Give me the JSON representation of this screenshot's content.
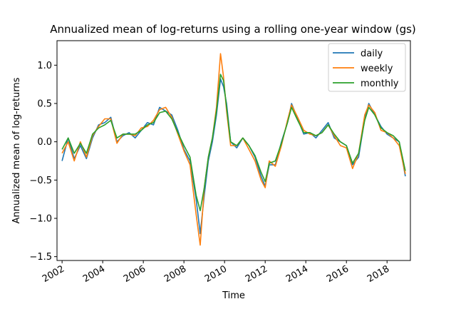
{
  "chart_data": {
    "type": "line",
    "title": "Annualized mean of log-returns using a rolling one-year window (gs)",
    "xlabel": "Time",
    "ylabel": "Annualized mean of log-returns",
    "x_ticks": [
      "2002",
      "2004",
      "2006",
      "2008",
      "2010",
      "2012",
      "2014",
      "2016",
      "2018"
    ],
    "y_ticks": [
      "−1.5",
      "−1.0",
      "−0.5",
      "0.0",
      "0.5",
      "1.0"
    ],
    "xlim": [
      2001.75,
      2019.15
    ],
    "ylim": [
      -1.55,
      1.32
    ],
    "grid": false,
    "legend_position": "top-right",
    "x": [
      2002.0,
      2002.3,
      2002.6,
      2002.9,
      2003.2,
      2003.5,
      2003.8,
      2004.1,
      2004.4,
      2004.7,
      2005.0,
      2005.3,
      2005.6,
      2005.9,
      2006.2,
      2006.5,
      2006.8,
      2007.1,
      2007.4,
      2007.7,
      2008.0,
      2008.3,
      2008.6,
      2008.8,
      2009.0,
      2009.2,
      2009.4,
      2009.6,
      2009.8,
      2009.95,
      2010.1,
      2010.3,
      2010.6,
      2010.9,
      2011.2,
      2011.5,
      2011.8,
      2012.0,
      2012.2,
      2012.5,
      2012.8,
      2013.1,
      2013.3,
      2013.6,
      2013.9,
      2014.2,
      2014.5,
      2014.8,
      2015.1,
      2015.4,
      2015.7,
      2016.0,
      2016.3,
      2016.6,
      2016.9,
      2017.1,
      2017.4,
      2017.7,
      2018.0,
      2018.3,
      2018.6,
      2018.9
    ],
    "series": [
      {
        "name": "daily",
        "color": "#1f77b4",
        "values": [
          -0.25,
          0.05,
          -0.22,
          -0.05,
          -0.22,
          0.05,
          0.22,
          0.25,
          0.32,
          0.0,
          0.08,
          0.12,
          0.05,
          0.15,
          0.25,
          0.22,
          0.45,
          0.4,
          0.35,
          0.15,
          -0.1,
          -0.25,
          -0.75,
          -1.2,
          -0.7,
          -0.25,
          0.0,
          0.35,
          0.82,
          0.72,
          0.5,
          0.0,
          -0.08,
          0.05,
          -0.05,
          -0.2,
          -0.45,
          -0.58,
          -0.3,
          -0.3,
          0.0,
          0.25,
          0.5,
          0.3,
          0.1,
          0.12,
          0.05,
          0.15,
          0.25,
          0.05,
          0.0,
          -0.05,
          -0.3,
          -0.2,
          0.3,
          0.5,
          0.35,
          0.2,
          0.1,
          0.05,
          0.0,
          -0.45
        ]
      },
      {
        "name": "weekly",
        "color": "#ff7f0e",
        "values": [
          -0.15,
          0.0,
          -0.25,
          0.0,
          -0.2,
          0.08,
          0.2,
          0.3,
          0.3,
          -0.02,
          0.1,
          0.1,
          0.08,
          0.18,
          0.2,
          0.28,
          0.42,
          0.45,
          0.32,
          0.1,
          -0.12,
          -0.3,
          -0.95,
          -1.35,
          -0.6,
          -0.2,
          0.05,
          0.45,
          1.15,
          0.85,
          0.4,
          -0.05,
          -0.05,
          0.05,
          -0.1,
          -0.25,
          -0.5,
          -0.6,
          -0.25,
          -0.32,
          -0.05,
          0.28,
          0.48,
          0.32,
          0.15,
          0.1,
          0.08,
          0.12,
          0.22,
          0.08,
          -0.05,
          -0.08,
          -0.35,
          -0.15,
          0.35,
          0.48,
          0.38,
          0.15,
          0.12,
          0.05,
          -0.05,
          -0.42
        ]
      },
      {
        "name": "monthly",
        "color": "#2ca02c",
        "values": [
          -0.1,
          0.05,
          -0.15,
          -0.02,
          -0.15,
          0.1,
          0.18,
          0.22,
          0.28,
          0.05,
          0.1,
          0.1,
          0.1,
          0.15,
          0.22,
          0.25,
          0.38,
          0.4,
          0.3,
          0.12,
          -0.05,
          -0.2,
          -0.7,
          -0.9,
          -0.6,
          -0.2,
          0.05,
          0.4,
          0.88,
          0.8,
          0.45,
          0.0,
          -0.05,
          0.05,
          -0.05,
          -0.18,
          -0.4,
          -0.52,
          -0.28,
          -0.25,
          -0.02,
          0.25,
          0.45,
          0.28,
          0.12,
          0.12,
          0.08,
          0.12,
          0.22,
          0.1,
          0.0,
          -0.05,
          -0.28,
          -0.15,
          0.28,
          0.45,
          0.35,
          0.18,
          0.12,
          0.08,
          0.0,
          -0.38
        ]
      }
    ]
  }
}
